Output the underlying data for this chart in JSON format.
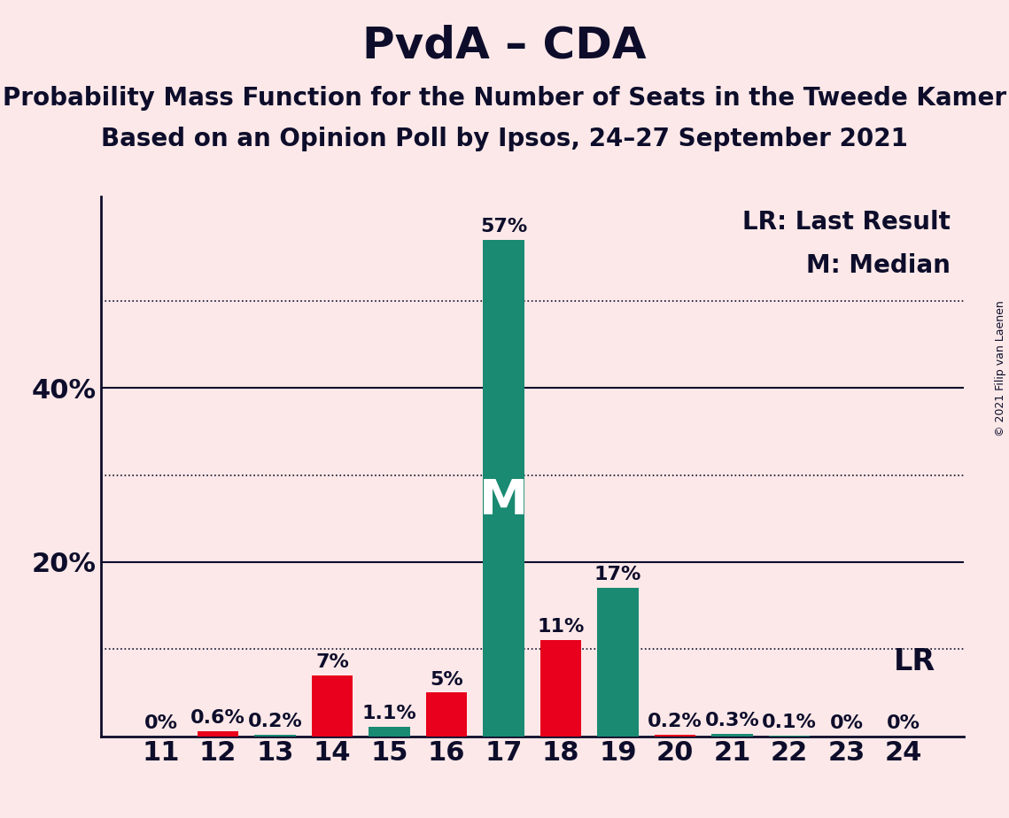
{
  "title": "PvdA – CDA",
  "subtitle1": "Probability Mass Function for the Number of Seats in the Tweede Kamer",
  "subtitle2": "Based on an Opinion Poll by Ipsos, 24–27 September 2021",
  "copyright": "© 2021 Filip van Laenen",
  "legend_lr": "LR: Last Result",
  "legend_m": "M: Median",
  "lr_label": "LR",
  "median_label": "M",
  "categories": [
    11,
    12,
    13,
    14,
    15,
    16,
    17,
    18,
    19,
    20,
    21,
    22,
    23,
    24
  ],
  "red_values": [
    0.0,
    0.6,
    0.0,
    7.0,
    0.0,
    5.0,
    0.0,
    11.0,
    0.0,
    0.2,
    0.0,
    0.0,
    0.0,
    0.0
  ],
  "teal_values": [
    0.0,
    0.0,
    0.2,
    0.0,
    1.1,
    0.0,
    57.0,
    0.0,
    17.0,
    0.0,
    0.3,
    0.1,
    0.0,
    0.0
  ],
  "bar_labels": [
    "0%",
    "0.6%",
    "0.2%",
    "7%",
    "1.1%",
    "5%",
    "57%",
    "11%",
    "17%",
    "0.2%",
    "0.3%",
    "0.1%",
    "0%",
    "0%"
  ],
  "red_color": "#e8001c",
  "teal_color": "#1a8a72",
  "background_color": "#fce8e8",
  "text_color": "#0d0d2b",
  "ylim": [
    0,
    62
  ],
  "yticks": [
    20,
    40
  ],
  "dotted_lines": [
    10,
    30,
    50
  ],
  "solid_lines": [
    20,
    40
  ],
  "median_seat": 17,
  "lr_seat": 24,
  "title_fontsize": 36,
  "subtitle_fontsize": 20,
  "label_fontsize": 16,
  "axis_fontsize": 22,
  "legend_fontsize": 20,
  "median_label_fontsize": 40,
  "lr_label_fontsize": 24
}
